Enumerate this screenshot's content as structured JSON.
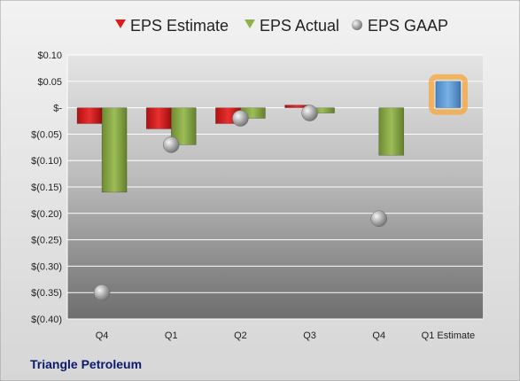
{
  "company_label": "Triangle Petroleum",
  "colors": {
    "estimate": "#e02020",
    "actual": "#8fb04a",
    "gaap": "#a0a0a0",
    "future_estimate": "#5b9bd5",
    "future_glow": "#f6a53a"
  },
  "chart_data": {
    "type": "bar",
    "categories": [
      "Q4",
      "Q1",
      "Q2",
      "Q3",
      "Q4",
      "Q1 Estimate"
    ],
    "series": [
      {
        "name": "EPS Estimate",
        "values": [
          -0.03,
          -0.04,
          -0.03,
          0.005,
          null,
          0.05
        ]
      },
      {
        "name": "EPS Actual",
        "values": [
          -0.16,
          -0.07,
          -0.02,
          -0.01,
          -0.09,
          null
        ]
      },
      {
        "name": "EPS GAAP",
        "values": [
          -0.35,
          -0.07,
          -0.02,
          -0.01,
          -0.21,
          null
        ]
      }
    ],
    "ylim": [
      -0.4,
      0.1
    ],
    "y_ticks": [
      0.1,
      0.05,
      0,
      -0.05,
      -0.1,
      -0.15,
      -0.2,
      -0.25,
      -0.3,
      -0.35,
      -0.4
    ],
    "y_tick_labels": [
      "$0.10",
      "$0.05",
      "$-",
      "$(0.05)",
      "$(0.10)",
      "$(0.15)",
      "$(0.20)",
      "$(0.25)",
      "$(0.30)",
      "$(0.35)",
      "$(0.40)"
    ],
    "legend_position": "top",
    "grid": true
  }
}
